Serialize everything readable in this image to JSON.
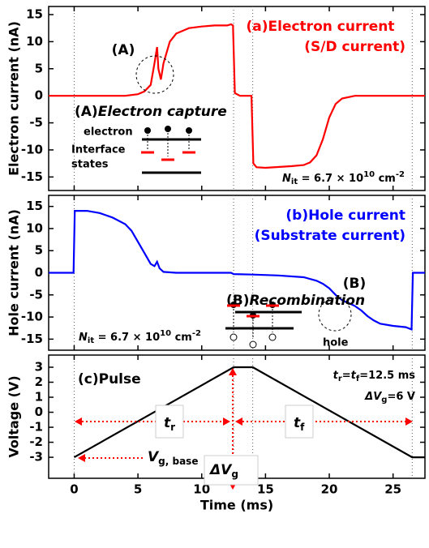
{
  "chart_data": [
    {
      "type": "line",
      "ylabel": "Electron current (nA)",
      "xlim": [
        -2,
        27.5
      ],
      "xticks": [
        0,
        5,
        10,
        15,
        20,
        25
      ],
      "ylim": [
        -17.5,
        16.5
      ],
      "yticks": [
        15,
        10,
        5,
        0,
        -5,
        -10,
        -15
      ],
      "vlines": [
        0,
        12.5,
        14,
        26.5
      ],
      "x": [
        -2,
        0,
        2,
        4,
        5,
        5.5,
        6,
        6.3,
        6.5,
        6.6,
        6.8,
        7,
        7.5,
        8,
        9,
        10,
        11,
        12,
        12.3,
        12.45,
        12.6,
        13,
        13.9,
        14.05,
        14.3,
        15,
        17,
        18,
        18.5,
        19,
        19.5,
        20,
        20.5,
        21,
        22,
        24,
        26,
        26.4,
        26.6,
        27.5
      ],
      "series": [
        {
          "color": "#ff0000",
          "values": [
            0,
            0,
            0,
            0,
            0.3,
            0.8,
            2,
            6,
            9,
            5,
            3,
            6,
            10,
            11.5,
            12.5,
            12.8,
            13,
            13,
            13.2,
            13,
            0.5,
            0,
            0,
            -12.5,
            -13.2,
            -13.3,
            -13,
            -12.8,
            -12.3,
            -11,
            -8,
            -4,
            -1.5,
            -0.5,
            0,
            0,
            0,
            0,
            0,
            0
          ]
        }
      ],
      "annotations": {
        "title": [
          "(a)Electron current",
          "(S/D current)"
        ],
        "marker": "(A)",
        "inset_title": [
          "(A)",
          "Electron capture"
        ],
        "electron": "electron",
        "interface": [
          "Interface",
          "states"
        ],
        "nit": [
          "N",
          "it",
          " = 6.7 × 10",
          "10",
          " cm",
          "-2"
        ]
      }
    },
    {
      "type": "line",
      "ylabel": "Hole current (nA)",
      "xlim": [
        -2,
        27.5
      ],
      "xticks": [
        0,
        5,
        10,
        15,
        20,
        25
      ],
      "ylim": [
        -17.5,
        17.5
      ],
      "yticks": [
        15,
        10,
        5,
        0,
        -5,
        -10,
        -15
      ],
      "vlines": [
        0,
        12.5,
        14,
        26.5
      ],
      "x": [
        -2,
        -0.05,
        0.05,
        1,
        2,
        3,
        4,
        4.5,
        5,
        5.5,
        6,
        6.3,
        6.5,
        6.7,
        7,
        8,
        10,
        12.3,
        12.5,
        14,
        16,
        18,
        19,
        19.5,
        20,
        20.5,
        21,
        21.5,
        22,
        22.5,
        23,
        23.5,
        24,
        25,
        26,
        26.45,
        26.55,
        27.5
      ],
      "series": [
        {
          "color": "#0000ff",
          "values": [
            0,
            0,
            14,
            14,
            13.5,
            12.5,
            11,
            9.5,
            7,
            4.5,
            2,
            1.5,
            2.5,
            1,
            0.2,
            0,
            0,
            0,
            -0.3,
            -0.4,
            -0.6,
            -1,
            -1.8,
            -2.5,
            -3.5,
            -5,
            -6.2,
            -6.8,
            -7.5,
            -8.5,
            -9.8,
            -10.8,
            -11.5,
            -12,
            -12.3,
            -12.8,
            0,
            0
          ]
        }
      ],
      "annotations": {
        "title": [
          "(b)Hole current",
          "(Substrate current)"
        ],
        "marker": "(B)",
        "inset_title": [
          "(B)",
          "Recombination"
        ],
        "hole": "hole",
        "nit": [
          "N",
          "it",
          " = 6.7 × 10",
          "10",
          " cm",
          "-2"
        ]
      }
    },
    {
      "type": "line",
      "ylabel": "Voltage (V)",
      "xlabel": "Time (ms)",
      "xlim": [
        -2,
        27.5
      ],
      "xticks": [
        0,
        5,
        10,
        15,
        20,
        25
      ],
      "ylim": [
        -4.4,
        3.81
      ],
      "yticks": [
        3,
        2,
        1,
        0,
        -1,
        -2,
        -3
      ],
      "vlines": [
        0,
        12.5,
        14,
        26.5
      ],
      "x": [
        0,
        12.5,
        14,
        26.5,
        27.5
      ],
      "series": [
        {
          "color": "#000000",
          "values": [
            -3,
            3,
            3,
            -3,
            -3
          ]
        }
      ],
      "annotations": {
        "title": "(c)Pulse",
        "times": [
          "t",
          "r",
          "=t",
          "f",
          "=12.5 ms"
        ],
        "dv": [
          "ΔV",
          "g",
          "=6 V"
        ],
        "dv_box": [
          "ΔV",
          "g"
        ],
        "tr": [
          "t",
          "r"
        ],
        "tf": [
          "t",
          "f"
        ],
        "vbase": [
          "V",
          "g, base"
        ]
      }
    }
  ]
}
